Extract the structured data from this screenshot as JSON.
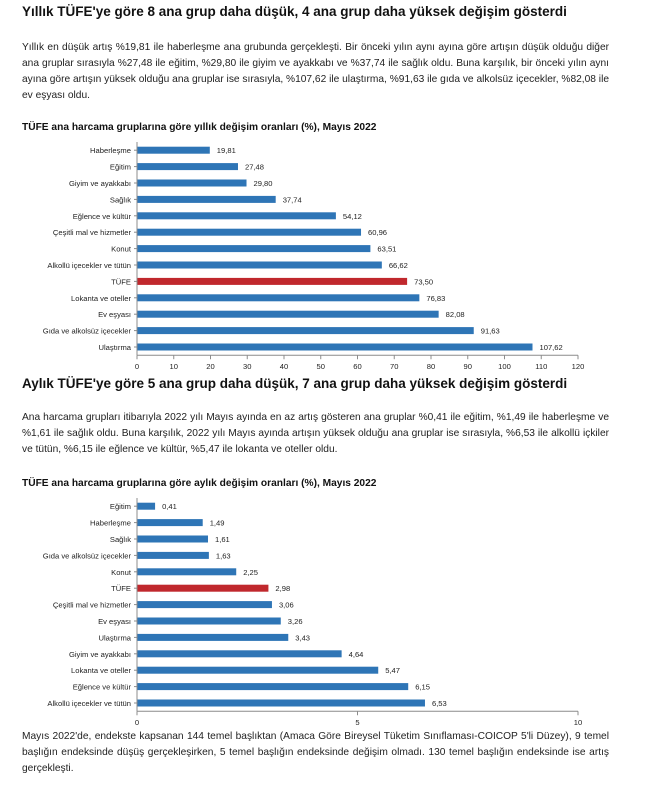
{
  "section1": {
    "title": "Yıllık TÜFE'ye göre 8 ana grup daha düşük, 4 ana grup daha yüksek değişim gösterdi",
    "paragraph": "Yıllık en düşük artış %19,81 ile haberleşme ana grubunda gerçekleşti. Bir önceki yılın aynı ayına göre artışın düşük olduğu diğer ana gruplar sırasıyla %27,48 ile eğitim, %29,80 ile giyim ve ayakkabı ve %37,74 ile sağlık oldu. Buna karşılık, bir önceki yılın aynı ayına göre artışın yüksek olduğu ana gruplar ise sırasıyla, %107,62 ile ulaştırma, %91,63 ile gıda ve alkolsüz içecekler, %82,08 ile ev eşyası oldu.",
    "chart_title": "TÜFE ana harcama gruplarına göre yıllık değişim oranları (%), Mayıs 2022"
  },
  "section2": {
    "title": "Aylık TÜFE'ye göre 5 ana grup daha düşük, 7 ana grup daha yüksek değişim gösterdi",
    "paragraph": "Ana harcama grupları itibarıyla 2022 yılı Mayıs ayında en az artış gösteren ana gruplar %0,41 ile eğitim, %1,49 ile haberleşme ve %1,61 ile sağlık oldu. Buna karşılık, 2022 yılı Mayıs ayında artışın yüksek olduğu ana gruplar ise sırasıyla, %6,53 ile alkollü içkiler ve tütün, %6,15 ile eğlence ve kültür, %5,47 ile lokanta ve oteller oldu.",
    "chart_title": "TÜFE ana harcama gruplarına göre aylık değişim oranları (%), Mayıs 2022"
  },
  "footer": {
    "paragraph": "Mayıs 2022'de, endekste kapsanan 144 temel başlıktan (Amaca Göre Bireysel Tüketim Sınıflaması-COICOP 5'li Düzey), 9 temel başlığın endeksinde düşüş gerçekleşirken, 5 temel başlığın endeksinde değişim olmadı. 130 temel başlığın endeksinde ise artış gerçekleşti."
  },
  "colors": {
    "bar": "#2e75b6",
    "highlight": "#c0282d",
    "axis": "#8c8c8c"
  },
  "chart_data": [
    {
      "type": "bar",
      "orientation": "horizontal",
      "title": "TÜFE ana harcama gruplarına göre yıllık değişim oranları (%), Mayıs 2022",
      "categories": [
        "Haberleşme",
        "Eğitim",
        "Giyim ve ayakkabı",
        "Sağlık",
        "Eğlence ve kültür",
        "Çeşitli mal ve hizmetler",
        "Konut",
        "Alkollü içecekler ve tütün",
        "TÜFE",
        "Lokanta ve oteller",
        "Ev eşyası",
        "Gıda ve alkolsüz içecekler",
        "Ulaştırma"
      ],
      "values": [
        19.81,
        27.48,
        29.8,
        37.74,
        54.12,
        60.96,
        63.51,
        66.62,
        73.5,
        76.83,
        82.08,
        91.63,
        107.62
      ],
      "value_labels": [
        "19,81",
        "27,48",
        "29,80",
        "37,74",
        "54,12",
        "60,96",
        "63,51",
        "66,62",
        "73,50",
        "76,83",
        "82,08",
        "91,63",
        "107,62"
      ],
      "highlight": "TÜFE",
      "xlim": [
        0,
        120
      ],
      "xticks": [
        0,
        10,
        20,
        30,
        40,
        50,
        60,
        70,
        80,
        90,
        100,
        110,
        120
      ],
      "xtick_labels": [
        "0",
        "10",
        "20",
        "30",
        "40",
        "50",
        "60",
        "70",
        "80",
        "90",
        "100",
        "110",
        "120"
      ]
    },
    {
      "type": "bar",
      "orientation": "horizontal",
      "title": "TÜFE ana harcama gruplarına göre aylık değişim oranları (%), Mayıs 2022",
      "categories": [
        "Eğitim",
        "Haberleşme",
        "Sağlık",
        "Gıda ve alkolsüz içecekler",
        "Konut",
        "TÜFE",
        "Çeşitli mal ve hizmetler",
        "Ev eşyası",
        "Ulaştırma",
        "Giyim ve ayakkabı",
        "Lokanta ve oteller",
        "Eğlence ve kültür",
        "Alkollü içecekler ve tütün"
      ],
      "values": [
        0.41,
        1.49,
        1.61,
        1.63,
        2.25,
        2.98,
        3.06,
        3.26,
        3.43,
        4.64,
        5.47,
        6.15,
        6.53
      ],
      "value_labels": [
        "0,41",
        "1,49",
        "1,61",
        "1,63",
        "2,25",
        "2,98",
        "3,06",
        "3,26",
        "3,43",
        "4,64",
        "5,47",
        "6,15",
        "6,53"
      ],
      "highlight": "TÜFE",
      "xlim": [
        0,
        10
      ],
      "xticks": [
        0,
        5,
        10
      ],
      "xtick_labels": [
        "0",
        "5",
        "10"
      ]
    }
  ]
}
